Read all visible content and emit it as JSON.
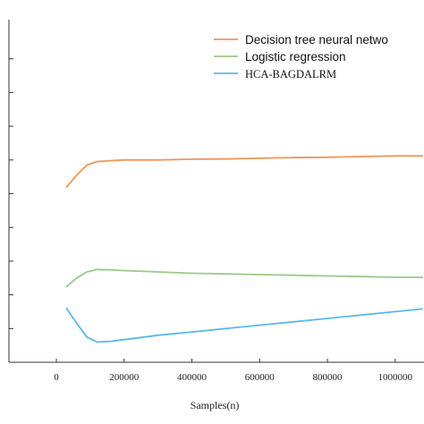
{
  "chart_data": {
    "type": "line",
    "xlabel": "Samples(n)",
    "ylabel": "",
    "title": "",
    "xlim": [
      -140000,
      1085000
    ],
    "x_ticks": [
      0,
      200000,
      400000,
      600000,
      800000,
      1000000
    ],
    "x_tick_labels": [
      "0",
      "200000",
      "400000",
      "600000",
      "800000",
      "1000000"
    ],
    "ylim": [
      0,
      10
    ],
    "y_ticks": [
      0,
      1,
      2,
      3,
      4,
      5,
      6,
      7,
      8,
      9
    ],
    "grid": false,
    "legend_position": "top-right",
    "series": [
      {
        "name": "Decision tree neural netwo",
        "color": "#F0965A",
        "x": [
          30000,
          60000,
          90000,
          120000,
          160000,
          200000,
          300000,
          400000,
          500000,
          600000,
          700000,
          800000,
          900000,
          1000000,
          1080000
        ],
        "y": [
          5.2,
          5.55,
          5.85,
          5.95,
          5.98,
          6.0,
          6.0,
          6.02,
          6.03,
          6.05,
          6.07,
          6.08,
          6.1,
          6.12,
          6.12
        ]
      },
      {
        "name": "Logistic regression",
        "color": "#9BC98A",
        "x": [
          30000,
          60000,
          90000,
          120000,
          160000,
          200000,
          300000,
          400000,
          500000,
          600000,
          700000,
          800000,
          900000,
          1000000,
          1080000
        ],
        "y": [
          2.25,
          2.5,
          2.68,
          2.75,
          2.74,
          2.72,
          2.68,
          2.64,
          2.62,
          2.6,
          2.58,
          2.56,
          2.54,
          2.52,
          2.52
        ]
      },
      {
        "name": "HCA-BAGDALRM",
        "color": "#5BB8E8",
        "x": [
          30000,
          60000,
          90000,
          120000,
          160000,
          200000,
          300000,
          400000,
          500000,
          600000,
          700000,
          800000,
          900000,
          1000000,
          1080000
        ],
        "y": [
          1.6,
          1.15,
          0.75,
          0.6,
          0.62,
          0.67,
          0.8,
          0.9,
          1.0,
          1.1,
          1.2,
          1.3,
          1.4,
          1.5,
          1.58
        ]
      }
    ]
  }
}
